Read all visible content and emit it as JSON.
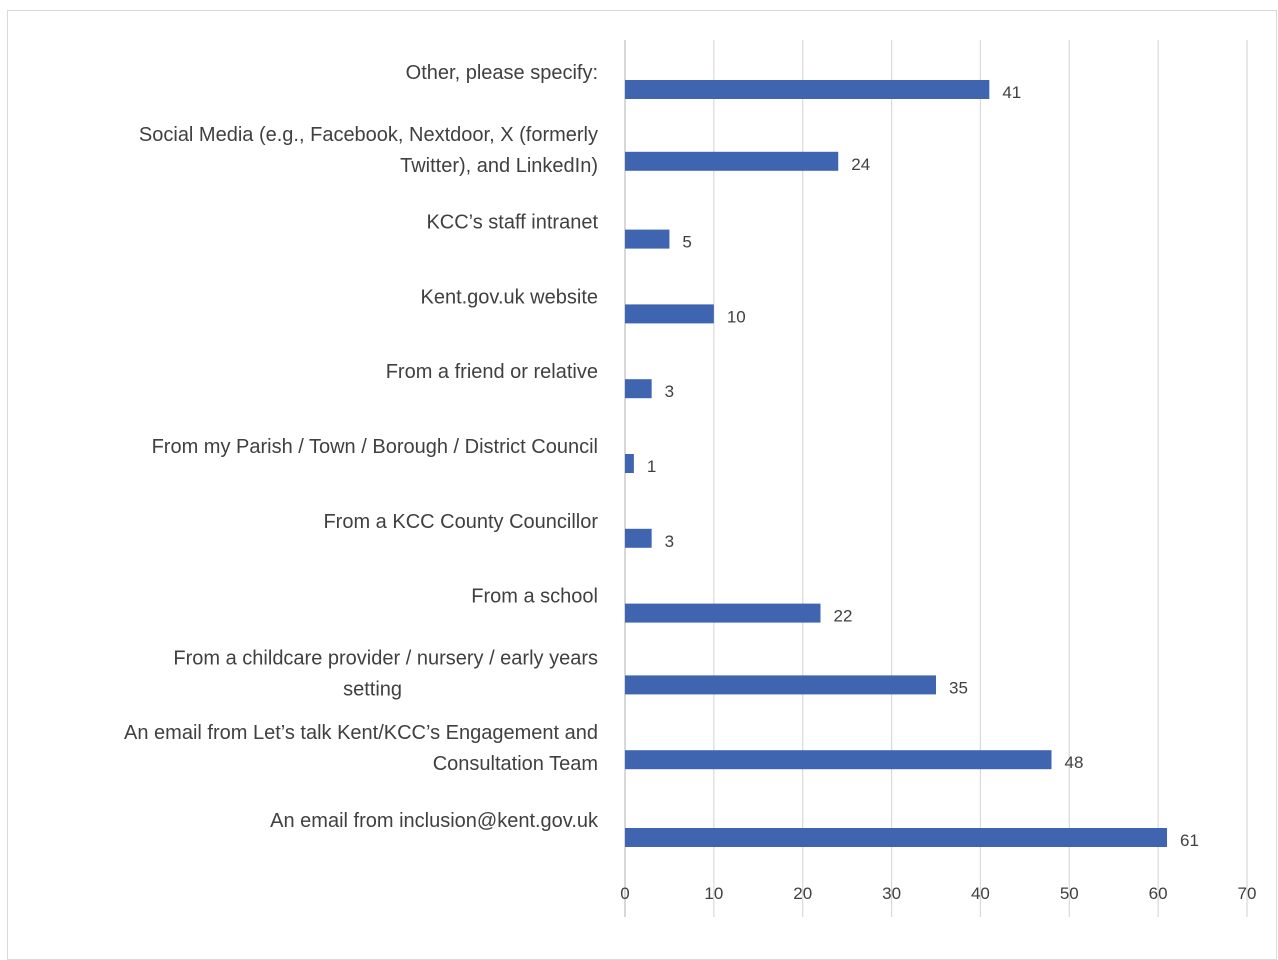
{
  "chart_data": {
    "type": "bar",
    "orientation": "horizontal",
    "title": "",
    "xlabel": "",
    "ylabel": "",
    "categories": [
      [
        "Other, please specify:"
      ],
      [
        "Social Media (e.g., Facebook, Nextdoor, X (formerly",
        "Twitter), and LinkedIn)"
      ],
      [
        "KCC’s staff intranet"
      ],
      [
        "Kent.gov.uk website"
      ],
      [
        "From a friend or relative"
      ],
      [
        "From my Parish / Town / Borough / District Council"
      ],
      [
        "From a KCC County Councillor"
      ],
      [
        "From a school"
      ],
      [
        "From a childcare provider / nursery / early years",
        "setting"
      ],
      [
        "An email from Let’s talk Kent/KCC’s Engagement and",
        "Consultation Team"
      ],
      [
        "An email from inclusion@kent.gov.uk"
      ]
    ],
    "values": [
      41,
      24,
      5,
      10,
      3,
      1,
      3,
      22,
      35,
      48,
      61
    ],
    "xlim": [
      0,
      70
    ],
    "xticks": [
      0,
      10,
      20,
      30,
      40,
      50,
      60,
      70
    ],
    "grid": true,
    "data_labels": true,
    "colors": {
      "bar": "#4065b0",
      "grid": "#d9d9d9",
      "axis": "#bfbfbf",
      "text": "#404040",
      "frame": "#d9d9d9"
    }
  }
}
